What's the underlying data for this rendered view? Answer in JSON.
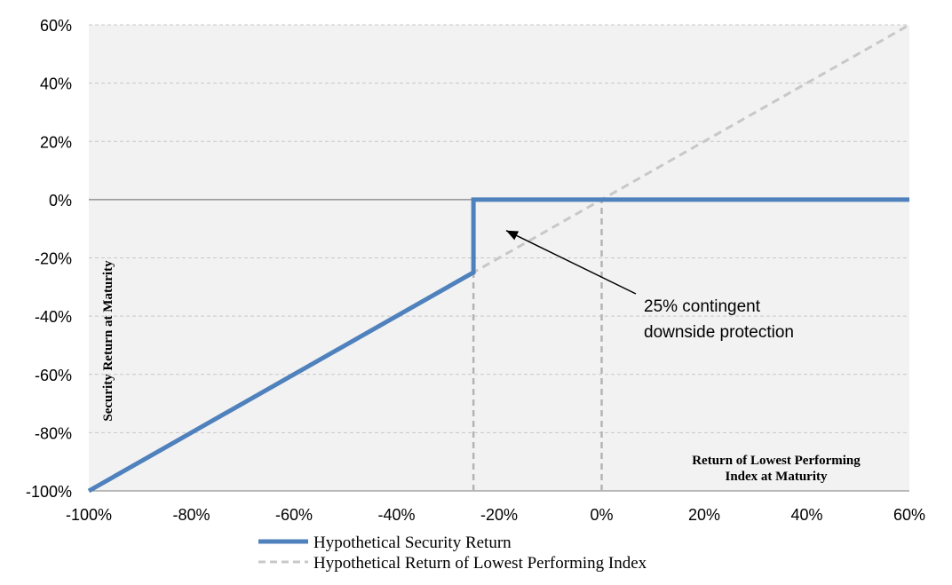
{
  "chart_data": {
    "type": "line",
    "title": "",
    "xlabel_lines": [
      "Return of Lowest Performing",
      "Index at Maturity"
    ],
    "ylabel": "Security Return at Maturity",
    "xlim": [
      -100,
      60
    ],
    "ylim": [
      -100,
      60
    ],
    "x_ticks": [
      -100,
      -80,
      -60,
      -40,
      -20,
      0,
      20,
      40,
      60
    ],
    "y_ticks": [
      -100,
      -80,
      -60,
      -40,
      -20,
      0,
      20,
      40,
      60
    ],
    "x_tick_labels": [
      "-100%",
      "-80%",
      "-60%",
      "-40%",
      "-20%",
      "0%",
      "20%",
      "40%",
      "60%"
    ],
    "y_tick_labels": [
      "-100%",
      "-80%",
      "-60%",
      "-40%",
      "-20%",
      "0%",
      "20%",
      "40%",
      "60%"
    ],
    "grid": true,
    "grid_style": "dashed horizontal",
    "legend_position": "bottom",
    "series": [
      {
        "name": "Hypothetical Security Return",
        "color": "#4f81bd",
        "style": "solid",
        "x": [
          -100,
          -25,
          -25,
          60
        ],
        "y": [
          -100,
          -25,
          0,
          0
        ]
      },
      {
        "name": "Hypothetical Return of Lowest Performing Index",
        "color": "#c8c8c8",
        "style": "dashed",
        "x": [
          -100,
          60
        ],
        "y": [
          -100,
          60
        ]
      }
    ],
    "reference_lines": [
      {
        "axis": "x",
        "value": -25,
        "y_from": -100,
        "y_to": -25,
        "color": "#b4b4b4",
        "style": "dashed"
      },
      {
        "axis": "x",
        "value": 0,
        "y_from": -100,
        "y_to": 0,
        "color": "#b4b4b4",
        "style": "dashed"
      },
      {
        "axis": "y",
        "value": 0,
        "color": "#808080",
        "style": "solid"
      }
    ],
    "annotation": {
      "text_lines": [
        "25% contingent",
        "downside protection"
      ],
      "arrow_target": {
        "x": -20,
        "y": -10
      }
    }
  }
}
